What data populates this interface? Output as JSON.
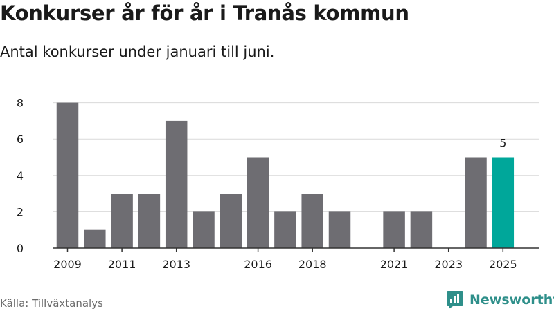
{
  "title": "Konkurser år för år i Tranås kommun",
  "subtitle": "Antal konkurser under januari till juni.",
  "source": "Källa: Tillväxtanalys",
  "brand": {
    "name": "Newsworthy",
    "icon": "newsworthy-logo-icon",
    "color": "#2e8f8a"
  },
  "colors": {
    "bar": "#6e6d72",
    "highlight": "#00a79a",
    "grid": "#d9d9d9",
    "axis": "#333333"
  },
  "chart_data": {
    "type": "bar",
    "title": "Konkurser år för år i Tranås kommun",
    "subtitle": "Antal konkurser under januari till juni.",
    "xlabel": "",
    "ylabel": "",
    "categories": [
      "2009",
      "2010",
      "2011",
      "2012",
      "2013",
      "2014",
      "2015",
      "2016",
      "2017",
      "2018",
      "2019",
      "2020",
      "2021",
      "2022",
      "2023",
      "2024",
      "2025"
    ],
    "values": [
      8,
      1,
      3,
      3,
      7,
      2,
      3,
      5,
      2,
      3,
      2,
      0,
      2,
      2,
      0,
      5,
      5
    ],
    "x_tick_labels": [
      "2009",
      "2011",
      "2013",
      "2016",
      "2018",
      "2021",
      "2023",
      "2025"
    ],
    "y_ticks": [
      0,
      2,
      4,
      6,
      8
    ],
    "ylim": [
      0,
      8.4
    ],
    "highlight_category": "2025",
    "highlight_label": "5",
    "grid": true,
    "legend": "none"
  }
}
